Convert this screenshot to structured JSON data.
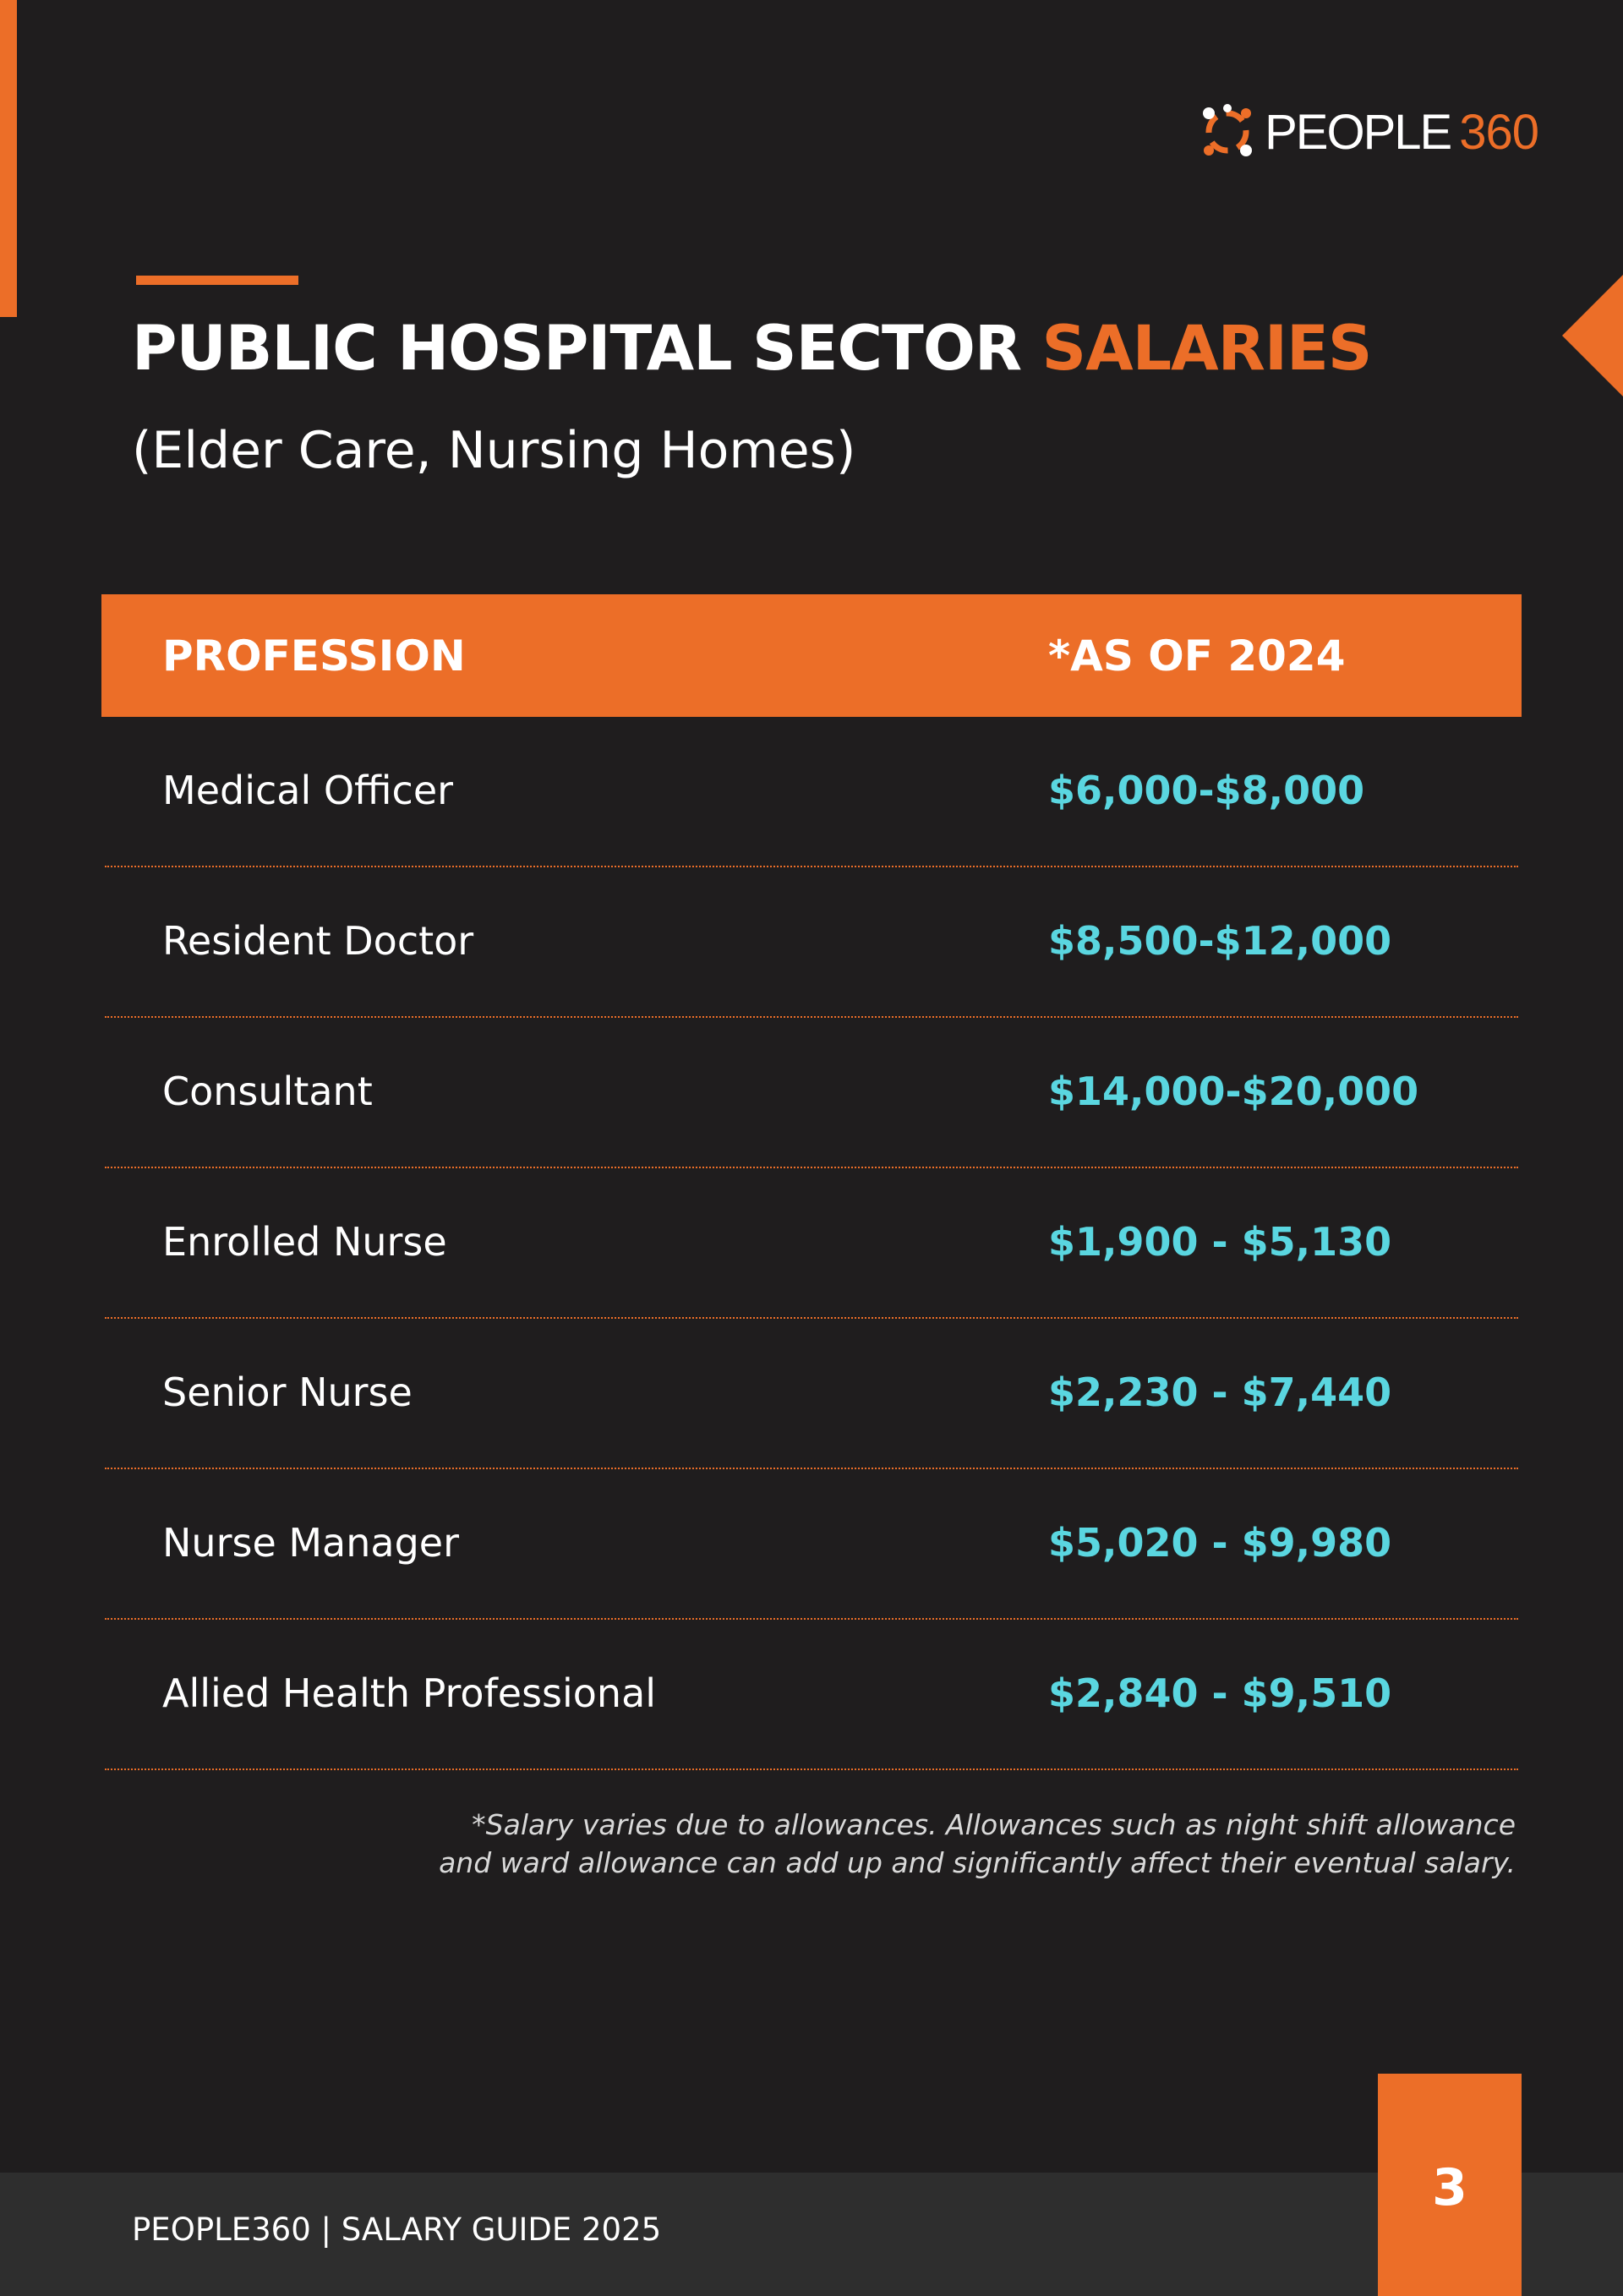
{
  "brand": {
    "logo_text": "PEOPLE",
    "logo_number": "360",
    "accent_color": "#ec6e28",
    "value_color": "#5ad6e0"
  },
  "header": {
    "title_main": "PUBLIC HOSPITAL SECTOR",
    "title_accent": "SALARIES",
    "subtitle": "(Elder Care, Nursing Homes)"
  },
  "table": {
    "columns": [
      "PROFESSION",
      "*AS OF 2024"
    ],
    "rows": [
      {
        "profession": "Medical Officer",
        "salary": "$6,000-$8,000"
      },
      {
        "profession": "Resident Doctor",
        "salary": "$8,500-$12,000"
      },
      {
        "profession": "Consultant",
        "salary": "$14,000-$20,000"
      },
      {
        "profession": "Enrolled Nurse",
        "salary": "$1,900 - $5,130"
      },
      {
        "profession": "Senior Nurse",
        "salary": "$2,230 - $7,440"
      },
      {
        "profession": "Nurse Manager",
        "salary": "$5,020 - $9,980"
      },
      {
        "profession": "Allied Health Professional",
        "salary": "$2,840 - $9,510"
      }
    ]
  },
  "footnote": {
    "line1": "*Salary varies due to allowances. Allowances such as night shift allowance",
    "line2": "and ward allowance can add up and significantly affect their eventual salary."
  },
  "footer": {
    "text": "PEOPLE360 | SALARY GUIDE 2025",
    "page_number": "3"
  }
}
